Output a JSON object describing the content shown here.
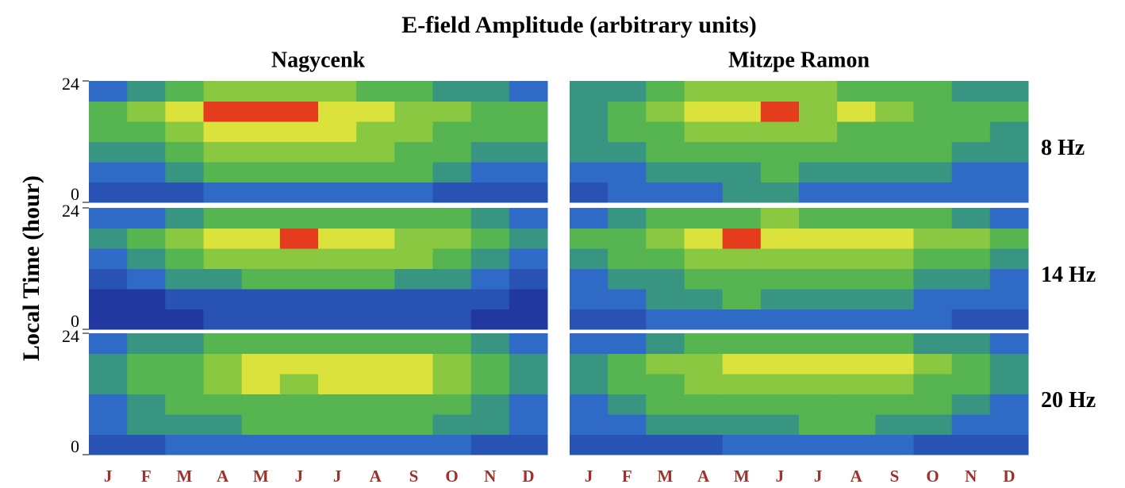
{
  "chart_data": {
    "type": "heatmap",
    "title": "E-field Amplitude (arbitrary units)",
    "ylabel": "Local Time (hour)",
    "columns": [
      "Nagycenk",
      "Mitzpe Ramon"
    ],
    "rows": [
      "8 Hz",
      "14 Hz",
      "20 Hz"
    ],
    "categories": [
      "J",
      "F",
      "M",
      "A",
      "M",
      "J",
      "J",
      "A",
      "S",
      "O",
      "N",
      "D"
    ],
    "ylim": [
      0,
      24
    ],
    "yticks": [
      0,
      24
    ],
    "panels": [
      {
        "values": [
          [
            2,
            2,
            2,
            3,
            3,
            3,
            3,
            3,
            3,
            2,
            2,
            2
          ],
          [
            3,
            3,
            4,
            5,
            5,
            5,
            5,
            5,
            5,
            4,
            3,
            3
          ],
          [
            4,
            4,
            5,
            6,
            6,
            6,
            6,
            6,
            5,
            5,
            4,
            4
          ],
          [
            5,
            5,
            6,
            7,
            7,
            7,
            7,
            6,
            6,
            5,
            5,
            5
          ],
          [
            5,
            6,
            7,
            8,
            8,
            8,
            7,
            7,
            6,
            6,
            5,
            5
          ],
          [
            3,
            4,
            5,
            6,
            6,
            6,
            6,
            5,
            5,
            4,
            4,
            3
          ]
        ]
      },
      {
        "values": [
          [
            2,
            3,
            3,
            3,
            4,
            4,
            3,
            3,
            3,
            3,
            3,
            3
          ],
          [
            3,
            3,
            4,
            4,
            4,
            5,
            4,
            4,
            4,
            4,
            3,
            3
          ],
          [
            4,
            4,
            5,
            5,
            5,
            5,
            5,
            5,
            5,
            5,
            4,
            4
          ],
          [
            4,
            5,
            5,
            6,
            6,
            6,
            6,
            5,
            5,
            5,
            5,
            4
          ],
          [
            4,
            5,
            6,
            7,
            7,
            8,
            6,
            7,
            6,
            5,
            5,
            5
          ],
          [
            4,
            4,
            5,
            6,
            6,
            6,
            6,
            5,
            5,
            5,
            4,
            4
          ]
        ]
      },
      {
        "values": [
          [
            1,
            1,
            1,
            2,
            2,
            2,
            2,
            2,
            2,
            2,
            1,
            1
          ],
          [
            1,
            1,
            2,
            2,
            2,
            2,
            2,
            2,
            2,
            2,
            2,
            1
          ],
          [
            2,
            3,
            4,
            4,
            5,
            5,
            5,
            5,
            4,
            4,
            3,
            2
          ],
          [
            3,
            4,
            5,
            6,
            6,
            6,
            6,
            6,
            6,
            5,
            4,
            3
          ],
          [
            4,
            5,
            6,
            7,
            7,
            8,
            7,
            7,
            6,
            6,
            5,
            4
          ],
          [
            3,
            3,
            4,
            5,
            5,
            5,
            5,
            5,
            5,
            5,
            4,
            3
          ]
        ]
      },
      {
        "values": [
          [
            2,
            2,
            3,
            3,
            3,
            3,
            3,
            3,
            3,
            3,
            2,
            2
          ],
          [
            3,
            3,
            4,
            4,
            5,
            4,
            4,
            4,
            4,
            3,
            3,
            3
          ],
          [
            3,
            4,
            4,
            5,
            5,
            5,
            5,
            5,
            5,
            4,
            4,
            3
          ],
          [
            4,
            5,
            5,
            6,
            6,
            6,
            6,
            6,
            6,
            5,
            5,
            4
          ],
          [
            5,
            5,
            6,
            7,
            8,
            7,
            7,
            7,
            7,
            6,
            6,
            5
          ],
          [
            3,
            4,
            5,
            5,
            5,
            6,
            5,
            5,
            5,
            5,
            4,
            3
          ]
        ]
      },
      {
        "values": [
          [
            2,
            2,
            3,
            3,
            3,
            3,
            3,
            3,
            3,
            3,
            2,
            2
          ],
          [
            3,
            4,
            4,
            4,
            5,
            5,
            5,
            5,
            5,
            4,
            4,
            3
          ],
          [
            3,
            4,
            5,
            5,
            5,
            5,
            5,
            5,
            5,
            5,
            4,
            3
          ],
          [
            4,
            5,
            5,
            6,
            7,
            6,
            7,
            7,
            7,
            6,
            5,
            4
          ],
          [
            4,
            5,
            5,
            6,
            7,
            7,
            7,
            7,
            7,
            6,
            5,
            4
          ],
          [
            3,
            4,
            4,
            5,
            5,
            5,
            5,
            5,
            5,
            5,
            4,
            3
          ]
        ]
      },
      {
        "values": [
          [
            2,
            2,
            2,
            2,
            3,
            3,
            3,
            3,
            3,
            2,
            2,
            2
          ],
          [
            3,
            3,
            4,
            4,
            4,
            4,
            5,
            5,
            4,
            4,
            3,
            3
          ],
          [
            3,
            4,
            5,
            5,
            5,
            5,
            5,
            5,
            5,
            5,
            4,
            3
          ],
          [
            4,
            5,
            5,
            6,
            6,
            6,
            6,
            6,
            6,
            5,
            5,
            4
          ],
          [
            4,
            5,
            6,
            6,
            7,
            7,
            7,
            7,
            7,
            6,
            5,
            4
          ],
          [
            3,
            3,
            4,
            5,
            5,
            5,
            5,
            5,
            5,
            4,
            4,
            3
          ]
        ]
      }
    ]
  }
}
